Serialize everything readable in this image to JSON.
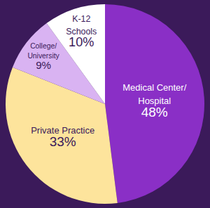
{
  "chart_data": {
    "type": "pie",
    "categories": [
      "Medical Center/Hospital",
      "Private Practice",
      "College/University",
      "K-12 Schools"
    ],
    "values": [
      48,
      33,
      9,
      10
    ],
    "value_labels": [
      "48%",
      "33%",
      "9%",
      "10%"
    ],
    "colors": [
      "#8a2fc6",
      "#fde49c",
      "#d9b3f2",
      "#ffffff"
    ],
    "data_labels": true
  }
}
